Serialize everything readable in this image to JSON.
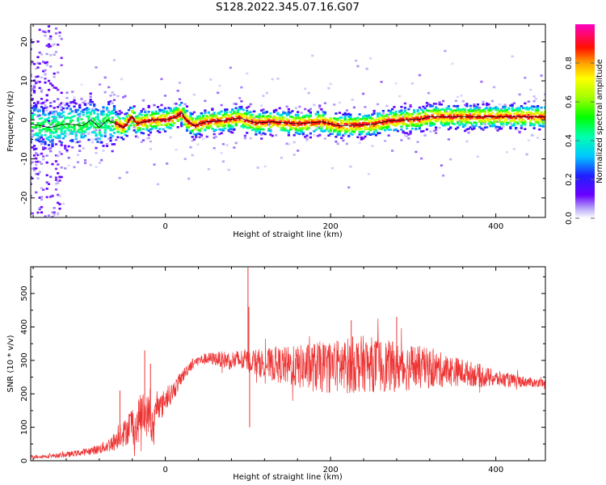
{
  "title": "S128.2022.345.07.16.G07",
  "chart_data": [
    {
      "type": "heatmap",
      "xlabel": "Height of straight line (km)",
      "ylabel": "Frequency (Hz)",
      "xlim": [
        -163,
        460
      ],
      "ylim": [
        -25,
        24.5
      ],
      "xticks": [
        0,
        200,
        400
      ],
      "yticks": [
        -20,
        -10,
        0,
        10,
        20
      ],
      "grid": false,
      "colorbar": {
        "label": "Normalized spectral amplitude",
        "range": [
          0,
          1
        ],
        "ticks": [
          "0.0",
          "0.2",
          "0.4",
          "0.6",
          "0.8"
        ]
      },
      "ridge_line": {
        "x": [
          -163,
          -140,
          -120,
          -100,
          -90,
          -80,
          -70,
          -60,
          -50,
          -40,
          -35,
          -25,
          -15,
          0,
          10,
          20,
          25,
          35,
          50,
          70,
          90,
          110,
          130,
          160,
          190,
          210,
          250,
          270,
          290,
          310,
          320,
          460
        ],
        "y": [
          -1,
          -2,
          -1,
          -1.5,
          0,
          -2,
          0,
          -1,
          -2,
          1,
          -1,
          -0.5,
          0,
          0,
          0.5,
          1.8,
          0,
          -1.5,
          -0.5,
          -0.2,
          0.5,
          -0.8,
          -0.5,
          -1,
          -0.5,
          -1.5,
          -1.2,
          -0.3,
          0,
          0.2,
          0.8,
          0.8
        ]
      },
      "intensity_scale": {
        "name": "amplitude",
        "min": 0,
        "max": 1
      }
    },
    {
      "type": "line",
      "xlabel": "Height of straight line (km)",
      "ylabel": "SNR (10 * v/v)",
      "xlim": [
        -163,
        460
      ],
      "ylim": [
        0,
        580
      ],
      "xticks": [
        0,
        200,
        400
      ],
      "yticks": [
        0,
        100,
        200,
        300,
        400,
        500
      ],
      "grid": false,
      "series": [
        {
          "color": "#ee3333",
          "envelope": {
            "x": [
              -163,
              -140,
              -120,
              -100,
              -80,
              -70,
              -60,
              -55,
              -50,
              -45,
              -40,
              -35,
              -30,
              -25,
              -20,
              -15,
              -10,
              -5,
              0,
              5,
              10,
              15,
              20,
              30,
              40,
              50,
              60,
              80,
              100,
              120,
              140,
              160,
              180,
              200,
              220,
              240,
              260,
              280,
              300,
              320,
              340,
              360,
              380,
              400,
              420,
              440,
              460
            ],
            "center": [
              12,
              14,
              18,
              25,
              35,
              45,
              60,
              90,
              80,
              100,
              110,
              90,
              150,
              130,
              140,
              90,
              175,
              160,
              185,
              195,
              210,
              230,
              250,
              285,
              300,
              305,
              305,
              300,
              300,
              290,
              285,
              280,
              280,
              280,
              285,
              290,
              285,
              280,
              280,
              275,
              270,
              265,
              255,
              245,
              240,
              235,
              230
            ],
            "amplitude": [
              6,
              6,
              8,
              10,
              15,
              20,
              30,
              45,
              40,
              50,
              60,
              55,
              70,
              65,
              60,
              55,
              45,
              40,
              35,
              30,
              30,
              25,
              20,
              18,
              15,
              18,
              20,
              30,
              35,
              45,
              55,
              65,
              75,
              80,
              85,
              85,
              80,
              75,
              70,
              60,
              50,
              40,
              35,
              25,
              20,
              15,
              12
            ]
          },
          "spikes": [
            {
              "x": -55,
              "y": 210
            },
            {
              "x": -25,
              "y": 330
            },
            {
              "x": -18,
              "y": 290
            },
            {
              "x": 100,
              "y": 578
            },
            {
              "x": 101,
              "y": 460
            },
            {
              "x": 102,
              "y": 100
            },
            {
              "x": 225,
              "y": 420
            },
            {
              "x": 280,
              "y": 430
            }
          ]
        }
      ]
    }
  ]
}
